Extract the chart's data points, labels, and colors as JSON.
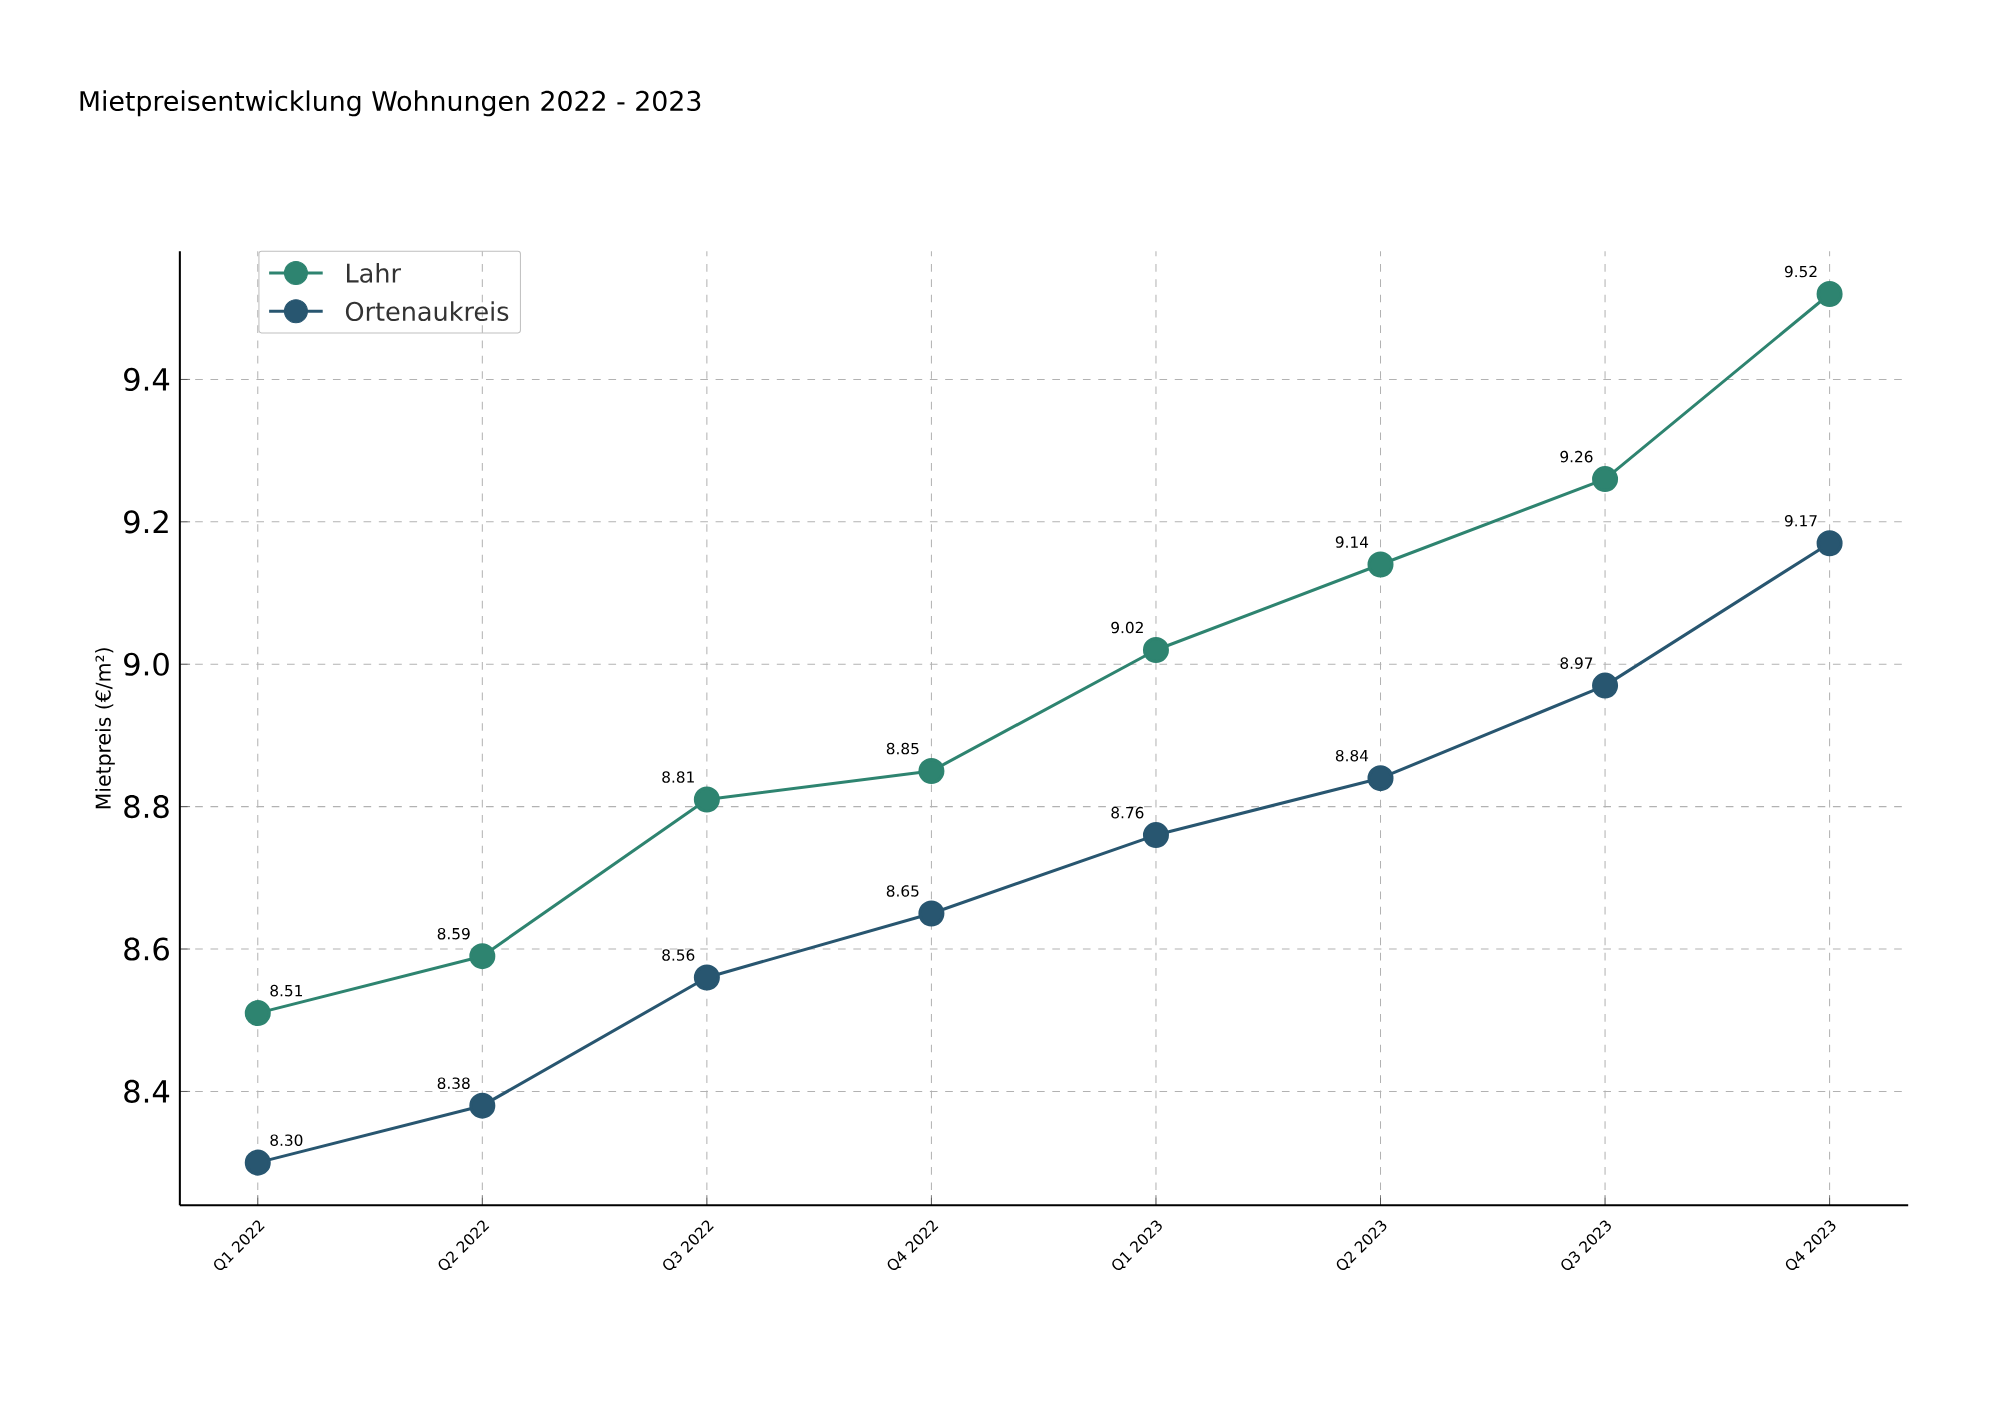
{
  "chart_data": {
    "type": "line",
    "title": "Mietpreisentwicklung Wohnungen 2022 - 2023",
    "ylabel": "Mietpreis (€/m²)",
    "categories": [
      "Q1 2022",
      "Q2 2022",
      "Q3 2022",
      "Q4 2022",
      "Q1 2023",
      "Q2 2023",
      "Q3 2023",
      "Q4 2023"
    ],
    "series": [
      {
        "name": "Lahr",
        "color": "#2e8470",
        "values": [
          8.51,
          8.59,
          8.81,
          8.85,
          9.02,
          9.14,
          9.26,
          9.52
        ],
        "value_labels": [
          "8.51",
          "8.59",
          "8.81",
          "8.85",
          "9.02",
          "9.14",
          "9.26",
          "9.52"
        ]
      },
      {
        "name": "Ortenaukreis",
        "color": "#285670",
        "values": [
          8.3,
          8.38,
          8.56,
          8.65,
          8.76,
          8.84,
          8.97,
          9.17
        ],
        "value_labels": [
          "8.30",
          "8.38",
          "8.56",
          "8.65",
          "8.76",
          "8.84",
          "8.97",
          "9.17"
        ]
      }
    ],
    "ylim": [
      8.24,
      9.58
    ],
    "yticks": [
      8.4,
      8.6,
      8.8,
      {
        "value": 9.0,
        "label": "9.0"
      },
      9.2,
      9.4
    ],
    "grid": true,
    "legend": "top left",
    "marker": "circle",
    "line_style": "solid"
  }
}
